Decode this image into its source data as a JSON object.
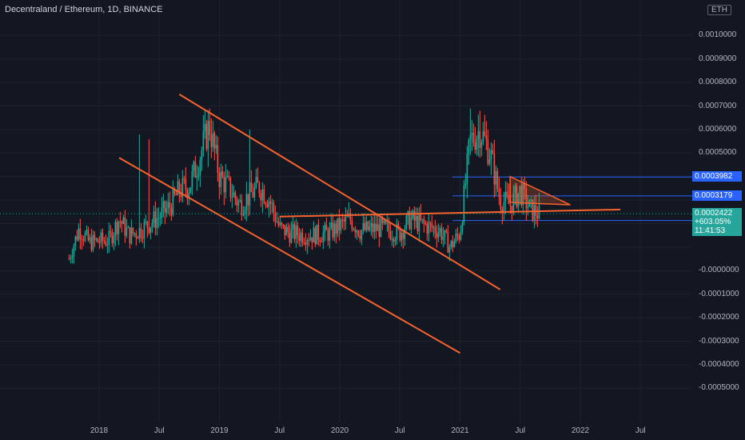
{
  "header": {
    "title": "Decentraland / Ethereum, 1D, BINANCE",
    "currency": "ETH"
  },
  "colors": {
    "background": "#131722",
    "up": "#26a69a",
    "down": "#ef5350",
    "trendline": "#f7622d",
    "level": "#2962ff",
    "grid": "#1e222d"
  },
  "chart_data": {
    "type": "candlestick",
    "ylim": [
      -0.00055,
      0.0011
    ],
    "y_ticks": [
      "0.0010000",
      "0.0009000",
      "0.0008000",
      "0.0007000",
      "0.0006000",
      "0.0005000",
      "-0.0000000",
      "-0.0001000",
      "-0.0002000",
      "-0.0003000",
      "-0.0004000",
      "-0.0005000"
    ],
    "x_ticks": [
      "2018",
      "Jul",
      "2019",
      "Jul",
      "2020",
      "Jul",
      "2021",
      "Jul",
      "2022",
      "Jul"
    ],
    "price_path": [
      [
        "2017-10",
        5e-05
      ],
      [
        "2017-11",
        0.00018
      ],
      [
        "2017-12",
        0.00012
      ],
      [
        "2018-02",
        0.00013
      ],
      [
        "2018-03",
        0.00022
      ],
      [
        "2018-04",
        0.00015
      ],
      [
        "2018-05",
        0.00017
      ],
      [
        "2018-07",
        0.00023
      ],
      [
        "2018-08",
        0.00027
      ],
      [
        "2018-09",
        0.00034
      ],
      [
        "2018-10",
        0.00036
      ],
      [
        "2018-11",
        0.00048
      ],
      [
        "2018-12",
        0.00062
      ],
      [
        "2019-01",
        0.0004
      ],
      [
        "2019-02",
        0.00035
      ],
      [
        "2019-03",
        0.00028
      ],
      [
        "2019-04",
        0.00032
      ],
      [
        "2019-05",
        0.00036
      ],
      [
        "2019-06",
        0.0003
      ],
      [
        "2019-07",
        0.00018
      ],
      [
        "2019-08",
        0.00016
      ],
      [
        "2019-10",
        0.00015
      ],
      [
        "2019-12",
        0.00016
      ],
      [
        "2020-02",
        0.00022
      ],
      [
        "2020-03",
        0.00017
      ],
      [
        "2020-05",
        0.00018
      ],
      [
        "2020-07",
        0.00016
      ],
      [
        "2020-08",
        0.00022
      ],
      [
        "2020-09",
        0.0002
      ],
      [
        "2020-11",
        0.00017
      ],
      [
        "2020-12",
        0.0001
      ],
      [
        "2021-01",
        0.00016
      ],
      [
        "2021-02",
        0.00055
      ],
      [
        "2021-03",
        0.0006
      ],
      [
        "2021-04",
        0.0005
      ],
      [
        "2021-05",
        0.0003
      ],
      [
        "2021-06",
        0.00028
      ],
      [
        "2021-07",
        0.00034
      ],
      [
        "2021-08",
        0.00026
      ],
      [
        "2021-09",
        0.00024
      ]
    ],
    "spikes": [
      [
        "2018-05",
        0.00058
      ],
      [
        "2018-06",
        0.00056
      ],
      [
        "2018-12",
        0.00069
      ],
      [
        "2019-04",
        0.0006
      ],
      [
        "2021-02",
        0.00069
      ],
      [
        "2021-03",
        0.00068
      ]
    ],
    "levels": [
      {
        "value": 0.0003982,
        "label": "0.0003982",
        "color": "#2962ff"
      },
      {
        "value": 0.0003179,
        "label": "0.0003179",
        "color": "#2962ff"
      },
      {
        "value": 0.0002134,
        "label": "0.0002134",
        "color": "#2962ff"
      }
    ],
    "current": {
      "price": "0.0002422",
      "change": "+603.05%",
      "countdown": "11:41:53",
      "value": 0.0002422,
      "color": "#26a69a"
    },
    "trendlines": [
      {
        "from": [
          "2018-09",
          0.00075
        ],
        "to": [
          "2021-05",
          -8e-05
        ]
      },
      {
        "from": [
          "2018-03",
          0.00048
        ],
        "to": [
          "2021-01",
          -0.00035
        ]
      },
      {
        "from": [
          "2019-07",
          0.00023
        ],
        "to": [
          "2022-05",
          0.00026
        ]
      }
    ],
    "triangle": {
      "points": [
        [
          "2021-06",
          0.0004
        ],
        [
          "2021-12",
          0.00028
        ],
        [
          "2021-06",
          0.00029
        ]
      ]
    }
  }
}
